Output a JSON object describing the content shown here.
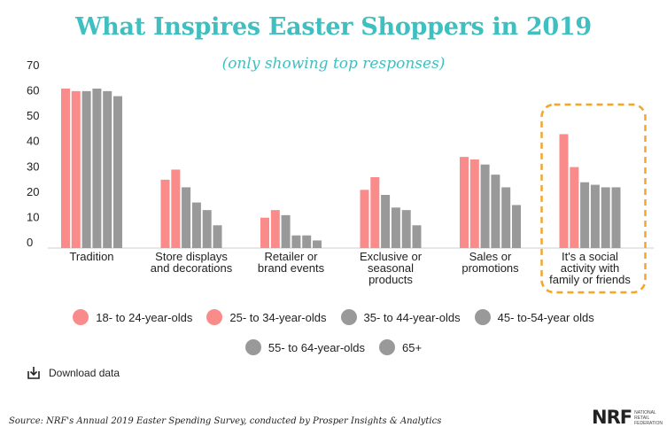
{
  "header": {
    "title": "What Inspires Easter Shoppers in 2019",
    "subtitle": "(only showing top responses)"
  },
  "chart_data": {
    "type": "bar",
    "categories": [
      [
        "Tradition"
      ],
      [
        "Store displays",
        "and decorations"
      ],
      [
        "Retailer or",
        "brand events"
      ],
      [
        "Exclusive or",
        "seasonal",
        "products"
      ],
      [
        "Sales or",
        "promotions"
      ],
      [
        "It's a social",
        "activity with",
        "family or friends"
      ]
    ],
    "series": [
      {
        "name": "18- to 24-year-olds",
        "color": "#f98b8b",
        "values": [
          63,
          27,
          12,
          23,
          36,
          45
        ]
      },
      {
        "name": "25- to 34-year-olds",
        "color": "#f98b8b",
        "values": [
          62,
          31,
          15,
          28,
          35,
          32
        ]
      },
      {
        "name": "35- to 44-year-olds",
        "color": "#999999",
        "values": [
          62,
          24,
          13,
          21,
          33,
          26
        ]
      },
      {
        "name": "45- to-54-year olds",
        "color": "#999999",
        "values": [
          63,
          18,
          5,
          16,
          29,
          25
        ]
      },
      {
        "name": "55- to 64-year-olds",
        "color": "#999999",
        "values": [
          62,
          15,
          5,
          15,
          24,
          24
        ]
      },
      {
        "name": "65+",
        "color": "#999999",
        "values": [
          60,
          9,
          3,
          9,
          17,
          24
        ]
      }
    ],
    "yticks": [
      0,
      10,
      20,
      30,
      40,
      50,
      60,
      70
    ],
    "ylim": [
      0,
      70
    ],
    "grid": false,
    "highlight_category": 5,
    "highlight_color": "#f5a623"
  },
  "legend": {
    "row1": [
      "18- to 24-year-olds",
      "25- to 34-year-olds",
      "35- to 44-year-olds",
      "45- to-54-year olds"
    ],
    "row2": [
      "55- to 64-year-olds",
      "65+"
    ]
  },
  "download": {
    "label": "Download data",
    "icon": "download-icon"
  },
  "footer": {
    "source": "Source: NRF's Annual 2019 Easter Spending Survey, conducted by Prosper Insights & Analytics",
    "logo_mark": "NRF",
    "logo_small": "NATIONAL RETAIL FEDERATION"
  }
}
